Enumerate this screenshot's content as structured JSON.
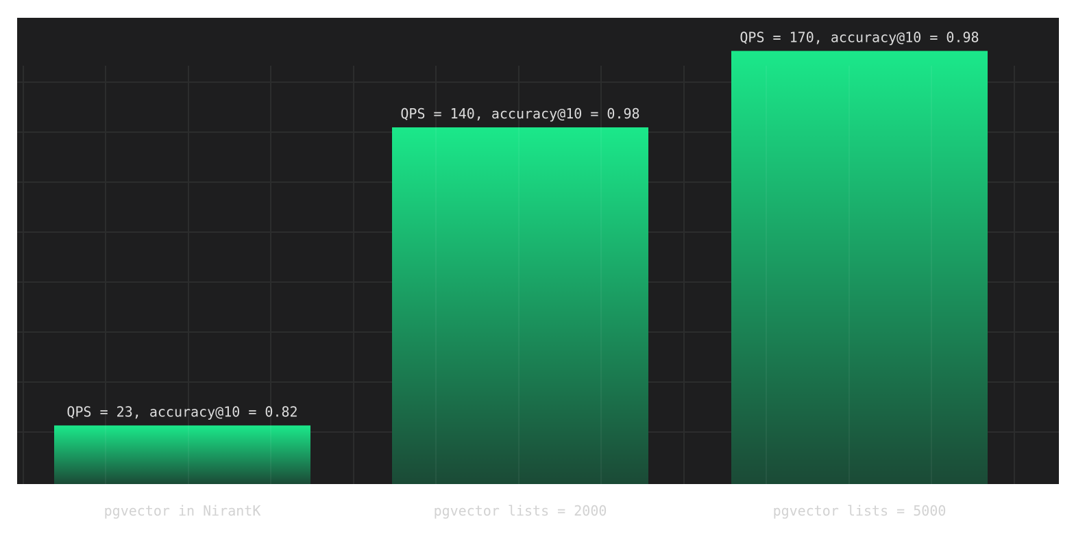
{
  "chart_data": {
    "type": "bar",
    "categories": [
      "pgvector in NirantK",
      "pgvector lists = 2000",
      "pgvector lists = 5000"
    ],
    "values": [
      23,
      140,
      170
    ],
    "labels": [
      "QPS = 23, accuracy@10 = 0.82",
      "QPS = 140, accuracy@10 = 0.98",
      "QPS = 170, accuracy@10 = 0.98"
    ],
    "title": "",
    "xlabel": "",
    "ylabel": "",
    "ylim": [
      0,
      183
    ],
    "grid": true,
    "legend": "none"
  },
  "colors": {
    "page_background": "#ffffff",
    "plot_background": "#1e1e1f",
    "grid": "#2c2d2d",
    "bar_top": "#1be88a",
    "bar_bottom": "#1b4a36",
    "value_label": "#dcdcdc",
    "category_label": "#d2d2d2"
  }
}
